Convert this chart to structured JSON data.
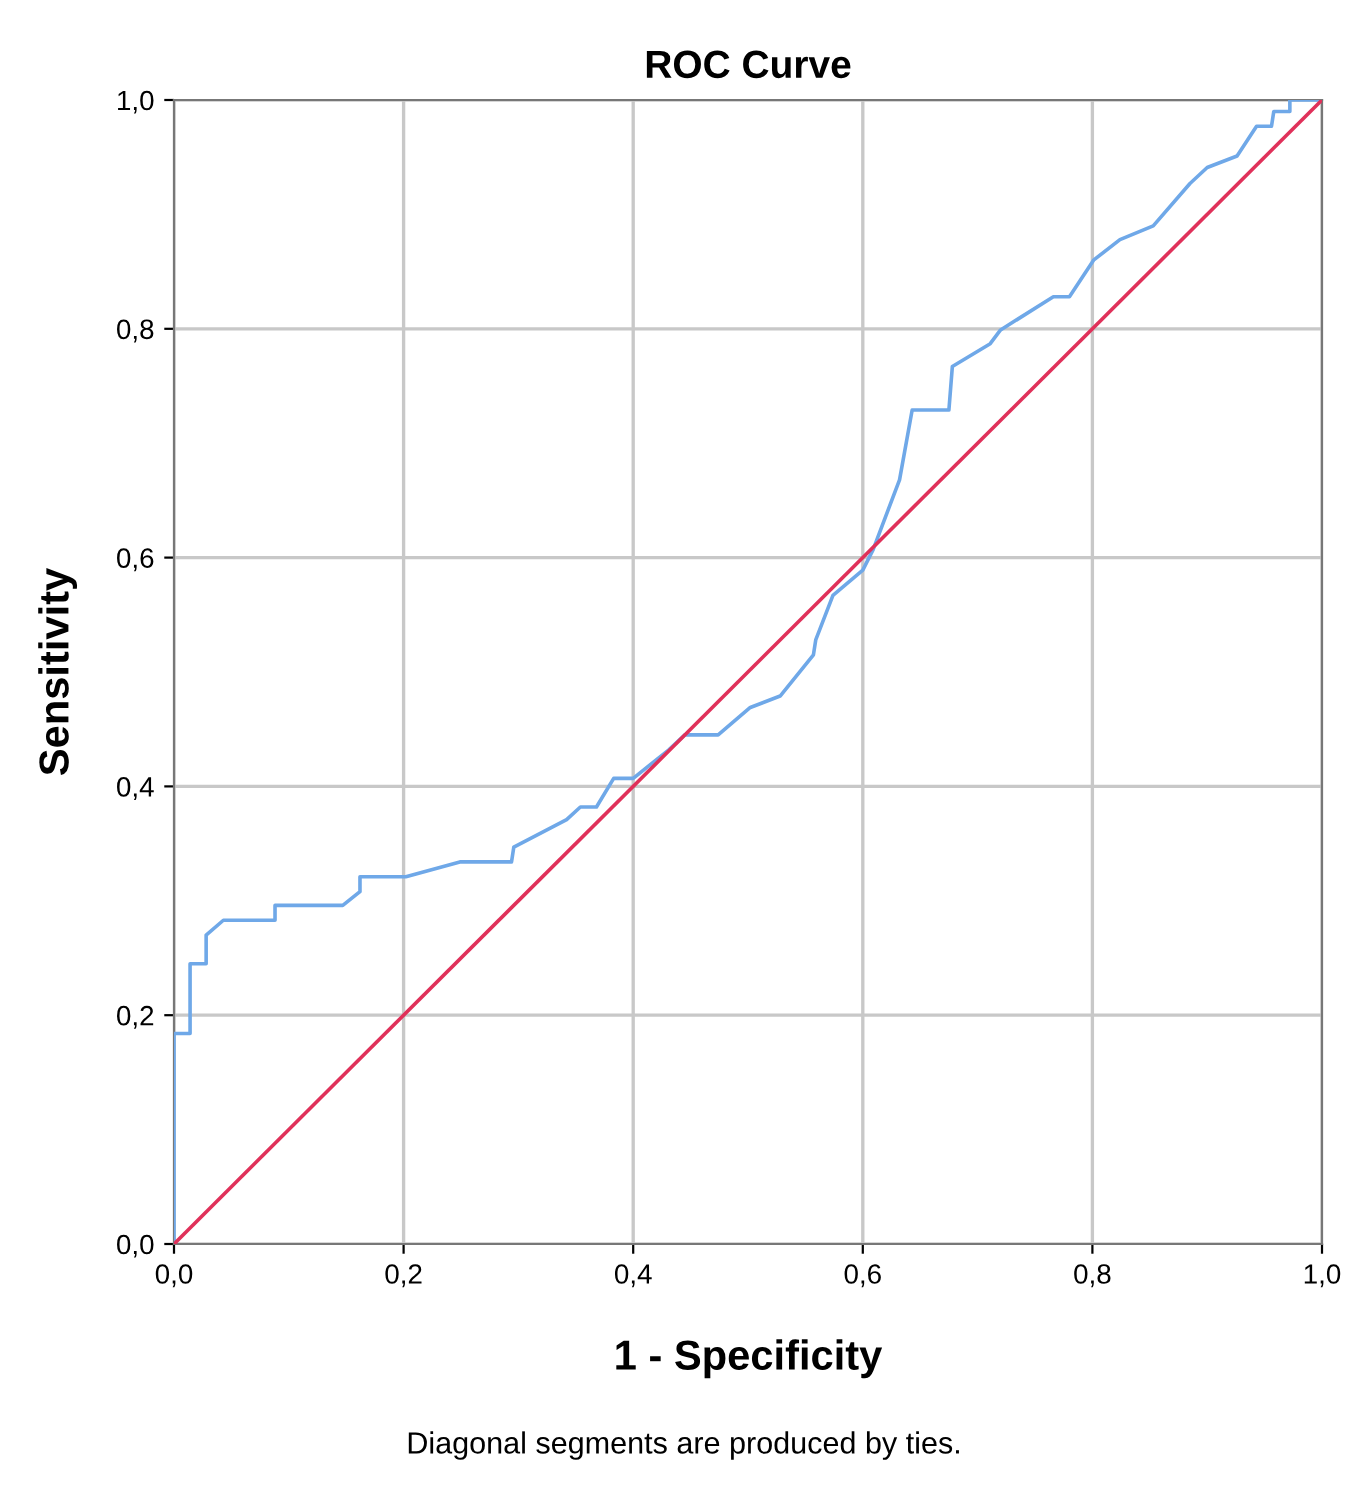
{
  "chart_data": {
    "type": "line",
    "title": "ROC Curve",
    "xlabel": "1 - Specificity",
    "ylabel": "Sensitivity",
    "annotations": [
      "Diagonal segments are produced by ties."
    ],
    "xlim": [
      0,
      1
    ],
    "ylim": [
      0,
      1
    ],
    "xticks": [
      {
        "value": 0,
        "label": "0,0"
      },
      {
        "value": 0.2,
        "label": "0,2"
      },
      {
        "value": 0.4,
        "label": "0,4"
      },
      {
        "value": 0.6,
        "label": "0,6"
      },
      {
        "value": 0.8,
        "label": "0,8"
      },
      {
        "value": 1,
        "label": "1,0"
      }
    ],
    "yticks": [
      {
        "value": 0,
        "label": "0,0"
      },
      {
        "value": 0.2,
        "label": "0,2"
      },
      {
        "value": 0.4,
        "label": "0,4"
      },
      {
        "value": 0.6,
        "label": "0,6"
      },
      {
        "value": 0.8,
        "label": "0,8"
      },
      {
        "value": 1,
        "label": "1,0"
      }
    ],
    "grid": true,
    "marker": "none",
    "line_style": "solid",
    "series": [
      {
        "color": "#6fa8e8",
        "x": [
          0,
          0,
          0.014,
          0.014,
          0.028,
          0.028,
          0.043,
          0.088,
          0.088,
          0.147,
          0.162,
          0.162,
          0.202,
          0.249,
          0.294,
          0.296,
          0.342,
          0.354,
          0.368,
          0.383,
          0.4,
          0.431,
          0.445,
          0.474,
          0.502,
          0.528,
          0.557,
          0.559,
          0.574,
          0.6,
          0.609,
          0.632,
          0.643,
          0.675,
          0.678,
          0.711,
          0.72,
          0.766,
          0.78,
          0.801,
          0.824,
          0.853,
          0.885,
          0.9,
          0.926,
          0.943,
          0.956,
          0.958,
          0.972,
          0.972,
          1.0
        ],
        "values": [
          0,
          0.184,
          0.184,
          0.245,
          0.245,
          0.27,
          0.283,
          0.283,
          0.296,
          0.296,
          0.308,
          0.321,
          0.321,
          0.334,
          0.334,
          0.347,
          0.371,
          0.382,
          0.382,
          0.407,
          0.407,
          0.432,
          0.445,
          0.445,
          0.469,
          0.479,
          0.515,
          0.528,
          0.567,
          0.589,
          0.607,
          0.668,
          0.729,
          0.729,
          0.767,
          0.787,
          0.799,
          0.828,
          0.828,
          0.86,
          0.878,
          0.89,
          0.927,
          0.941,
          0.951,
          0.977,
          0.977,
          0.99,
          0.99,
          1.0,
          1.0
        ]
      },
      {
        "color": "#e0315a",
        "x": [
          0,
          1
        ],
        "values": [
          0,
          1
        ]
      }
    ]
  }
}
